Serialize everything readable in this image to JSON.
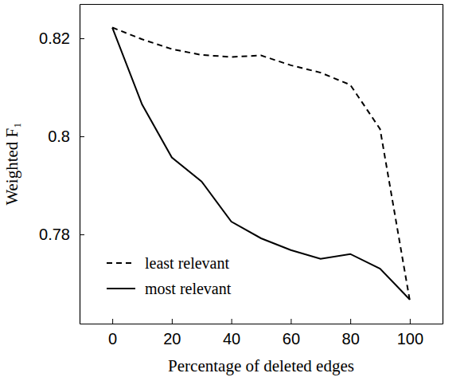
{
  "chart_data": {
    "type": "line",
    "x_label": "Percentage of deleted edges",
    "y_label": "Weighted F₁",
    "x": [
      0,
      10,
      20,
      30,
      40,
      50,
      60,
      70,
      80,
      90,
      100
    ],
    "series": [
      {
        "name": "least relevant",
        "color": "#000000",
        "line_style": "dashed",
        "values": [
          0.8222,
          0.8198,
          0.8178,
          0.8166,
          0.8162,
          0.8165,
          0.8145,
          0.813,
          0.8105,
          0.8015,
          0.7665
        ]
      },
      {
        "name": "most relevant",
        "color": "#000000",
        "line_style": "solid",
        "values": [
          0.8222,
          0.8065,
          0.7957,
          0.7908,
          0.7826,
          0.7792,
          0.7768,
          0.775,
          0.776,
          0.773,
          0.7667
        ]
      }
    ],
    "xlim": [
      -11,
      111
    ],
    "ylim": [
      0.7618,
      0.827
    ],
    "xticks": [
      0,
      20,
      40,
      60,
      80,
      100
    ],
    "yticks": [
      0.78,
      0.8,
      0.82
    ],
    "grid": false,
    "legend": "lower left"
  }
}
